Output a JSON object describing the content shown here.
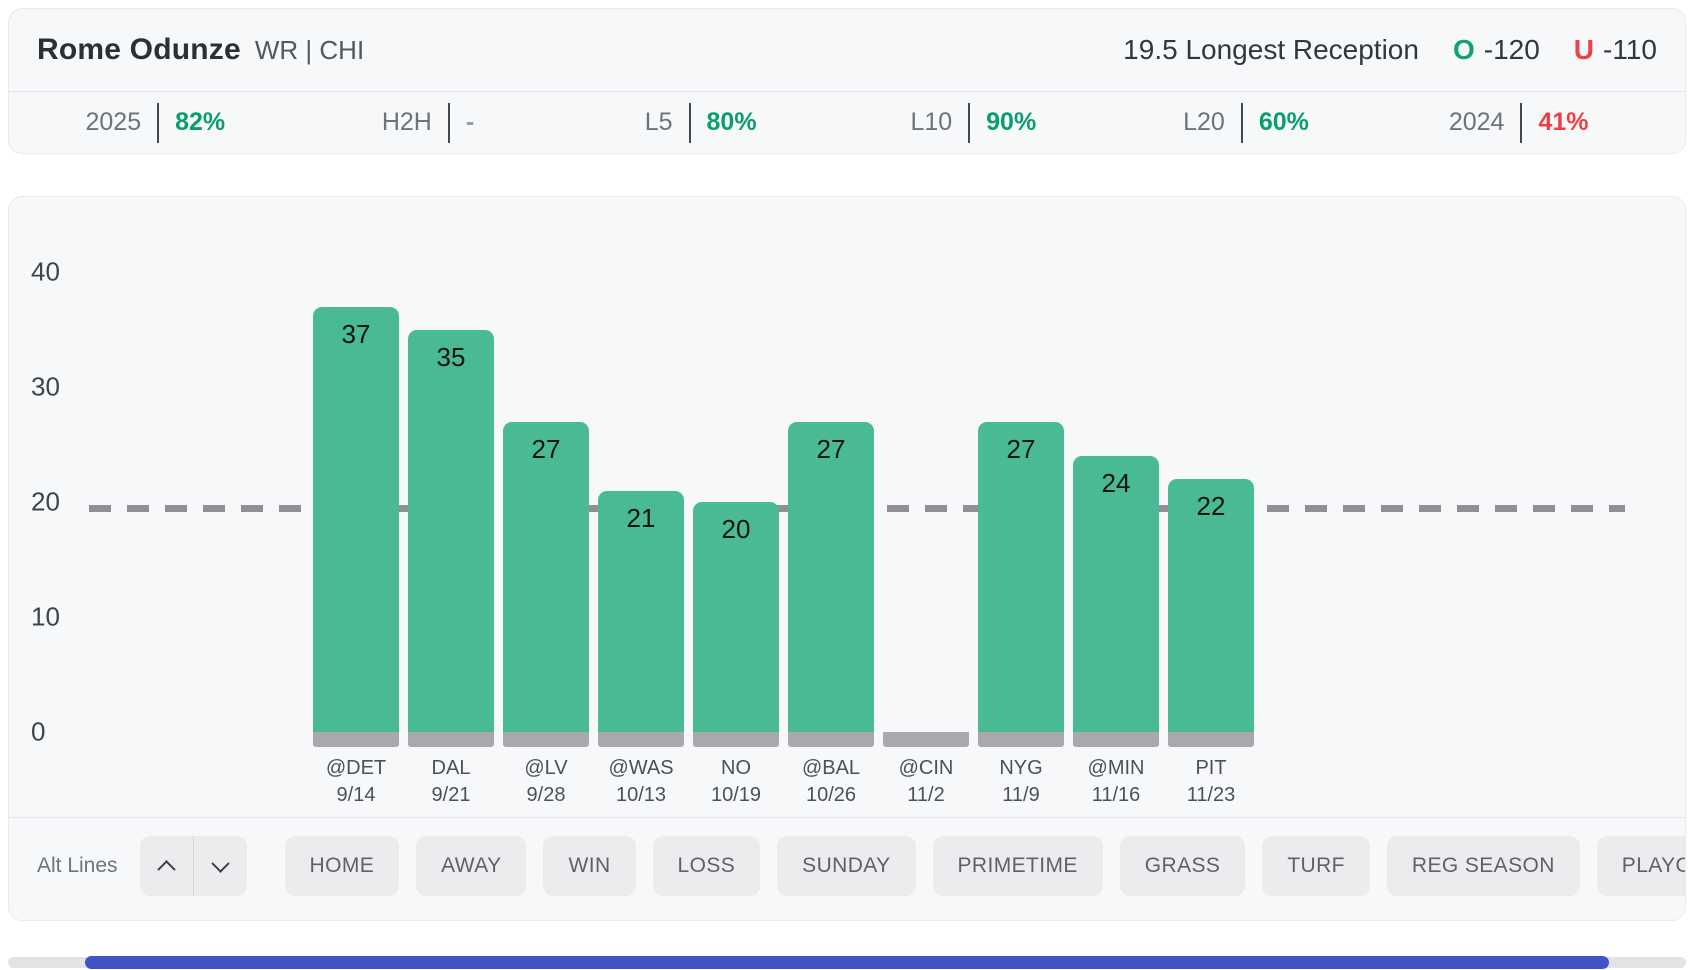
{
  "player": {
    "name": "Rome Odunze",
    "position_team": "WR | CHI"
  },
  "prop": {
    "line": "19.5",
    "market": "Longest Reception",
    "over_label": "O",
    "over_odds": "-120",
    "under_label": "U",
    "under_odds": "-110",
    "over_color": "#12a272",
    "under_color": "#ee4245"
  },
  "splits": [
    {
      "label": "2025",
      "value": "82%",
      "tone": "green"
    },
    {
      "label": "H2H",
      "value": "-",
      "tone": "neutral"
    },
    {
      "label": "L5",
      "value": "80%",
      "tone": "green"
    },
    {
      "label": "L10",
      "value": "90%",
      "tone": "green"
    },
    {
      "label": "L20",
      "value": "60%",
      "tone": "green"
    },
    {
      "label": "2024",
      "value": "41%",
      "tone": "red"
    }
  ],
  "chart_data": {
    "type": "bar",
    "ylabel": "",
    "xlabel": "",
    "ylim": [
      0,
      40
    ],
    "yticks": [
      0,
      10,
      20,
      30,
      40
    ],
    "grid": false,
    "prop_line": 19.5,
    "line_style": "dashed",
    "bar_color": "#4aba94",
    "base_color": "#a9a9ad",
    "categories": [
      "@DET 9/14",
      "DAL 9/21",
      "@LV 9/28",
      "@WAS 10/13",
      "NO 10/19",
      "@BAL 10/26",
      "@CIN 11/2",
      "NYG 11/9",
      "@MIN 11/16",
      "PIT 11/23"
    ],
    "values": [
      37,
      35,
      27,
      21,
      20,
      27,
      null,
      27,
      24,
      22
    ],
    "games": [
      {
        "opponent": "@DET",
        "date": "9/14",
        "value": 37
      },
      {
        "opponent": "DAL",
        "date": "9/21",
        "value": 35
      },
      {
        "opponent": "@LV",
        "date": "9/28",
        "value": 27
      },
      {
        "opponent": "@WAS",
        "date": "10/13",
        "value": 21
      },
      {
        "opponent": "NO",
        "date": "10/19",
        "value": 20
      },
      {
        "opponent": "@BAL",
        "date": "10/26",
        "value": 27
      },
      {
        "opponent": "@CIN",
        "date": "11/2",
        "value": null
      },
      {
        "opponent": "NYG",
        "date": "11/9",
        "value": 27
      },
      {
        "opponent": "@MIN",
        "date": "11/16",
        "value": 24
      },
      {
        "opponent": "PIT",
        "date": "11/23",
        "value": 22
      }
    ]
  },
  "toolbar": {
    "alt_lines_label": "Alt Lines",
    "filters": [
      "HOME",
      "AWAY",
      "WIN",
      "LOSS",
      "SUNDAY",
      "PRIMETIME",
      "GRASS",
      "TURF",
      "REG SEASON",
      "PLAYOFFS"
    ]
  }
}
